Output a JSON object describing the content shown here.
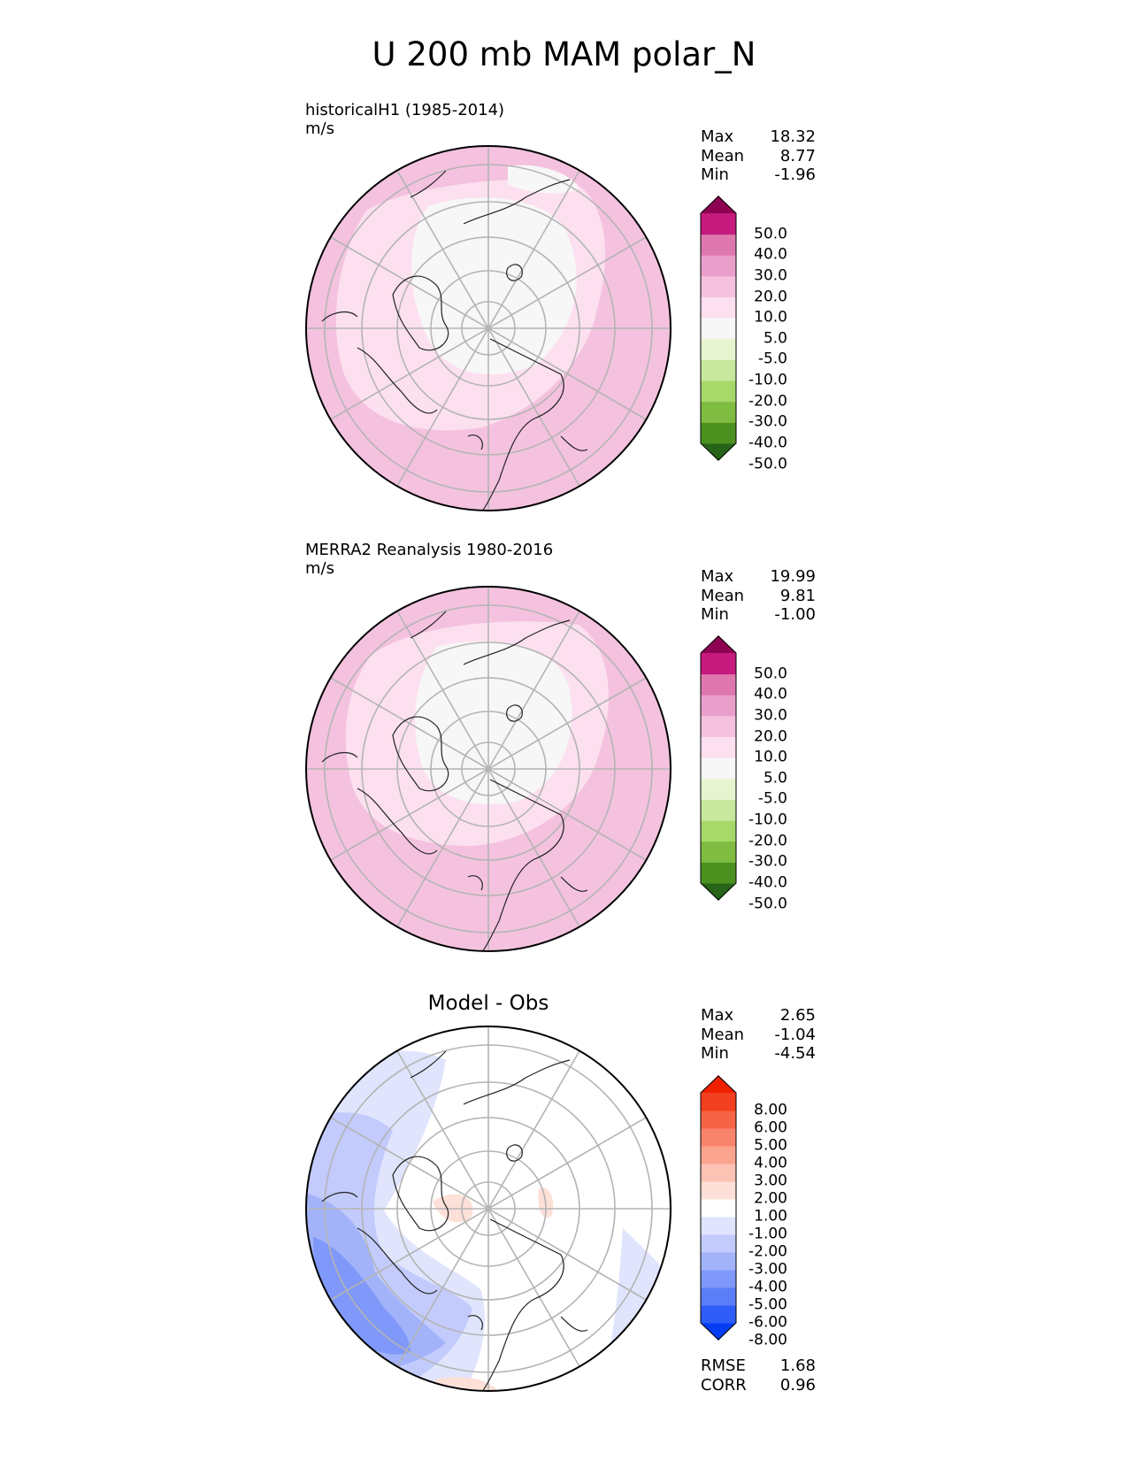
{
  "figure_title": "U 200 mb MAM polar_N",
  "panels": [
    {
      "title": "historicalH1 (1985-2014)",
      "units": "m/s",
      "stats": [
        {
          "label": "Max",
          "value": "18.32"
        },
        {
          "label": "Mean",
          "value": "8.77"
        },
        {
          "label": "Min",
          "value": "-1.96"
        }
      ],
      "colorbar": {
        "colors": [
          "#276419",
          "#4d9221",
          "#7fbc41",
          "#a6d96a",
          "#c8e89d",
          "#e6f5d0",
          "#f7f7f7",
          "#fde0ef",
          "#f4c2df",
          "#ea9fcb",
          "#de77ae",
          "#c51b7d",
          "#8e0152"
        ],
        "ticks": [
          "50.0",
          "40.0",
          "30.0",
          "20.0",
          "10.0",
          "5.0",
          "-5.0",
          "-10.0",
          "-20.0",
          "-30.0",
          "-40.0",
          "-50.0"
        ]
      }
    },
    {
      "title": "MERRA2 Reanalysis 1980-2016",
      "units": "m/s",
      "stats": [
        {
          "label": "Max",
          "value": "19.99"
        },
        {
          "label": "Mean",
          "value": "9.81"
        },
        {
          "label": "Min",
          "value": "-1.00"
        }
      ],
      "colorbar": {
        "colors": [
          "#276419",
          "#4d9221",
          "#7fbc41",
          "#a6d96a",
          "#c8e89d",
          "#e6f5d0",
          "#f7f7f7",
          "#fde0ef",
          "#f4c2df",
          "#ea9fcb",
          "#de77ae",
          "#c51b7d",
          "#8e0152"
        ],
        "ticks": [
          "50.0",
          "40.0",
          "30.0",
          "20.0",
          "10.0",
          "5.0",
          "-5.0",
          "-10.0",
          "-20.0",
          "-30.0",
          "-40.0",
          "-50.0"
        ]
      }
    },
    {
      "title": "Model - Obs",
      "stats": [
        {
          "label": "Max",
          "value": "2.65"
        },
        {
          "label": "Mean",
          "value": "-1.04"
        },
        {
          "label": "Min",
          "value": "-4.54"
        }
      ],
      "colorbar": {
        "colors": [
          "#053df5",
          "#2e5df7",
          "#5b7ef8",
          "#7f98f9",
          "#a3b3fa",
          "#c2cbfc",
          "#e0e5fd",
          "#ffffff",
          "#fde0d8",
          "#fcc2b4",
          "#fba48f",
          "#f8846b",
          "#f56445",
          "#f23f1f",
          "#ef2000"
        ],
        "ticks": [
          "8.00",
          "6.00",
          "5.00",
          "4.00",
          "3.00",
          "2.00",
          "1.00",
          "-1.00",
          "-2.00",
          "-3.00",
          "-4.00",
          "-5.00",
          "-6.00",
          "-8.00"
        ]
      },
      "extra_stats": [
        {
          "label": "RMSE",
          "value": "1.68"
        },
        {
          "label": "CORR",
          "value": "0.96"
        }
      ]
    }
  ]
}
